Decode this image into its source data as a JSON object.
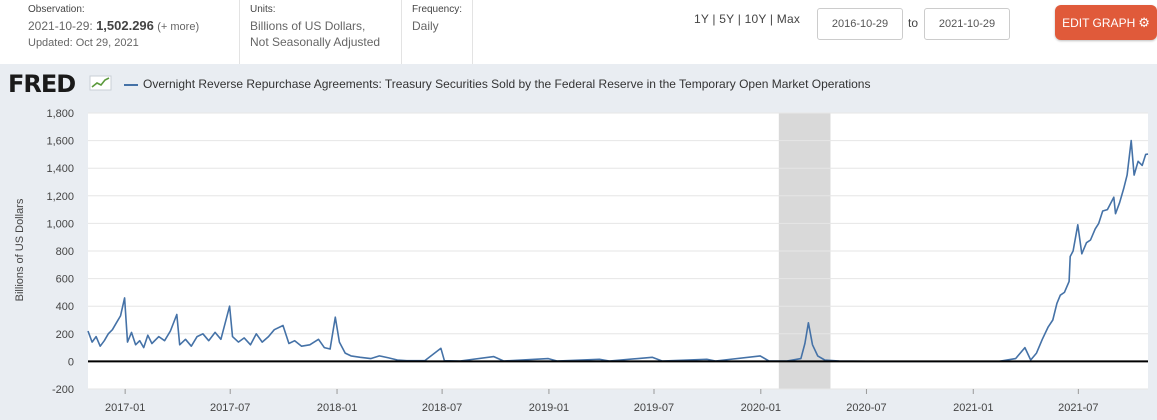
{
  "header": {
    "observation_title": "Observation:",
    "observation_date": "2021-10-29:",
    "observation_value": "1,502.296",
    "more_link": "(+ more)",
    "updated": "Updated: Oct 29, 2021",
    "units_title": "Units:",
    "units_line1": "Billions of US Dollars,",
    "units_line2": "Not Seasonally Adjusted",
    "frequency_title": "Frequency:",
    "frequency_value": "Daily",
    "range_1y": "1Y",
    "range_5y": "5Y",
    "range_10y": "10Y",
    "range_max": "Max",
    "range_sep": "|",
    "start_date": "2016-10-29",
    "to_label": "to",
    "end_date": "2021-10-29",
    "edit_button": "EDIT GRAPH",
    "gear_icon": "gear-icon"
  },
  "logo": {
    "text": "FRED"
  },
  "colors": {
    "series": "#4572a7",
    "recession": "#d9d9d9",
    "background": "#e9edf2",
    "edit_button": "#e05a3a"
  },
  "chart_data": {
    "type": "line",
    "title": "Overnight Reverse Repurchase Agreements: Treasury Securities Sold by the Federal Reserve in the Temporary Open Market Operations",
    "xlabel": "",
    "ylabel": "Billions of US Dollars",
    "ylim": [
      -200,
      1800
    ],
    "yticks": [
      -200,
      0,
      200,
      400,
      600,
      800,
      1000,
      1200,
      1400,
      1600,
      1800
    ],
    "ytick_labels": [
      "-200",
      "0",
      "200",
      "400",
      "600",
      "800",
      "1,000",
      "1,200",
      "1,400",
      "1,600",
      "1,800"
    ],
    "xlim": [
      "2016-10-29",
      "2021-10-29"
    ],
    "xticks": [
      "2017-01",
      "2017-07",
      "2018-01",
      "2018-07",
      "2019-01",
      "2019-07",
      "2020-01",
      "2020-07",
      "2021-01",
      "2021-07"
    ],
    "recession": [
      "2020-02-01",
      "2020-04-30"
    ],
    "grid": true,
    "series": [
      {
        "name": "Overnight Reverse Repurchase Agreements: Treasury Securities Sold by the Federal Reserve in the Temporary Open Market Operations",
        "points": [
          [
            "2016-10-29",
            220
          ],
          [
            "2016-11-05",
            140
          ],
          [
            "2016-11-12",
            180
          ],
          [
            "2016-11-19",
            110
          ],
          [
            "2016-11-26",
            150
          ],
          [
            "2016-12-03",
            200
          ],
          [
            "2016-12-10",
            230
          ],
          [
            "2016-12-17",
            280
          ],
          [
            "2016-12-24",
            330
          ],
          [
            "2016-12-31",
            460
          ],
          [
            "2017-01-05",
            140
          ],
          [
            "2017-01-12",
            210
          ],
          [
            "2017-01-19",
            120
          ],
          [
            "2017-01-26",
            150
          ],
          [
            "2017-02-02",
            100
          ],
          [
            "2017-02-09",
            190
          ],
          [
            "2017-02-16",
            130
          ],
          [
            "2017-02-28",
            180
          ],
          [
            "2017-03-10",
            150
          ],
          [
            "2017-03-20",
            220
          ],
          [
            "2017-03-31",
            340
          ],
          [
            "2017-04-05",
            120
          ],
          [
            "2017-04-15",
            160
          ],
          [
            "2017-04-25",
            110
          ],
          [
            "2017-05-05",
            180
          ],
          [
            "2017-05-15",
            200
          ],
          [
            "2017-05-25",
            150
          ],
          [
            "2017-06-05",
            210
          ],
          [
            "2017-06-15",
            160
          ],
          [
            "2017-06-30",
            400
          ],
          [
            "2017-07-05",
            180
          ],
          [
            "2017-07-15",
            140
          ],
          [
            "2017-07-25",
            170
          ],
          [
            "2017-08-05",
            120
          ],
          [
            "2017-08-15",
            200
          ],
          [
            "2017-08-25",
            140
          ],
          [
            "2017-09-05",
            180
          ],
          [
            "2017-09-15",
            230
          ],
          [
            "2017-09-30",
            260
          ],
          [
            "2017-10-10",
            130
          ],
          [
            "2017-10-20",
            150
          ],
          [
            "2017-11-01",
            110
          ],
          [
            "2017-11-15",
            120
          ],
          [
            "2017-11-30",
            160
          ],
          [
            "2017-12-10",
            100
          ],
          [
            "2017-12-20",
            90
          ],
          [
            "2017-12-29",
            320
          ],
          [
            "2018-01-05",
            140
          ],
          [
            "2018-01-15",
            60
          ],
          [
            "2018-01-25",
            40
          ],
          [
            "2018-02-10",
            30
          ],
          [
            "2018-02-28",
            20
          ],
          [
            "2018-03-15",
            40
          ],
          [
            "2018-03-31",
            25
          ],
          [
            "2018-04-15",
            10
          ],
          [
            "2018-05-01",
            5
          ],
          [
            "2018-06-01",
            5
          ],
          [
            "2018-06-29",
            95
          ],
          [
            "2018-07-05",
            5
          ],
          [
            "2018-08-01",
            3
          ],
          [
            "2018-09-28",
            35
          ],
          [
            "2018-10-15",
            3
          ],
          [
            "2018-12-31",
            20
          ],
          [
            "2019-01-15",
            3
          ],
          [
            "2019-03-29",
            15
          ],
          [
            "2019-04-15",
            3
          ],
          [
            "2019-06-28",
            30
          ],
          [
            "2019-07-15",
            3
          ],
          [
            "2019-09-30",
            15
          ],
          [
            "2019-10-15",
            3
          ],
          [
            "2019-12-31",
            40
          ],
          [
            "2020-01-15",
            3
          ],
          [
            "2020-02-15",
            2
          ],
          [
            "2020-03-10",
            20
          ],
          [
            "2020-03-17",
            130
          ],
          [
            "2020-03-23",
            280
          ],
          [
            "2020-03-30",
            120
          ],
          [
            "2020-04-08",
            40
          ],
          [
            "2020-04-20",
            10
          ],
          [
            "2020-05-15",
            2
          ],
          [
            "2020-07-01",
            1
          ],
          [
            "2020-09-30",
            1
          ],
          [
            "2020-12-31",
            1
          ],
          [
            "2021-02-15",
            1
          ],
          [
            "2021-03-15",
            20
          ],
          [
            "2021-03-31",
            100
          ],
          [
            "2021-04-10",
            10
          ],
          [
            "2021-04-20",
            60
          ],
          [
            "2021-04-30",
            160
          ],
          [
            "2021-05-10",
            250
          ],
          [
            "2021-05-18",
            300
          ],
          [
            "2021-05-25",
            420
          ],
          [
            "2021-05-31",
            480
          ],
          [
            "2021-06-07",
            500
          ],
          [
            "2021-06-15",
            580
          ],
          [
            "2021-06-17",
            760
          ],
          [
            "2021-06-22",
            800
          ],
          [
            "2021-06-30",
            990
          ],
          [
            "2021-07-07",
            780
          ],
          [
            "2021-07-15",
            860
          ],
          [
            "2021-07-22",
            880
          ],
          [
            "2021-07-30",
            960
          ],
          [
            "2021-08-05",
            1000
          ],
          [
            "2021-08-12",
            1090
          ],
          [
            "2021-08-20",
            1100
          ],
          [
            "2021-08-31",
            1190
          ],
          [
            "2021-09-03",
            1070
          ],
          [
            "2021-09-10",
            1150
          ],
          [
            "2021-09-17",
            1250
          ],
          [
            "2021-09-23",
            1350
          ],
          [
            "2021-09-30",
            1600
          ],
          [
            "2021-10-05",
            1350
          ],
          [
            "2021-10-12",
            1450
          ],
          [
            "2021-10-19",
            1420
          ],
          [
            "2021-10-25",
            1500
          ],
          [
            "2021-10-29",
            1502
          ]
        ]
      }
    ]
  }
}
